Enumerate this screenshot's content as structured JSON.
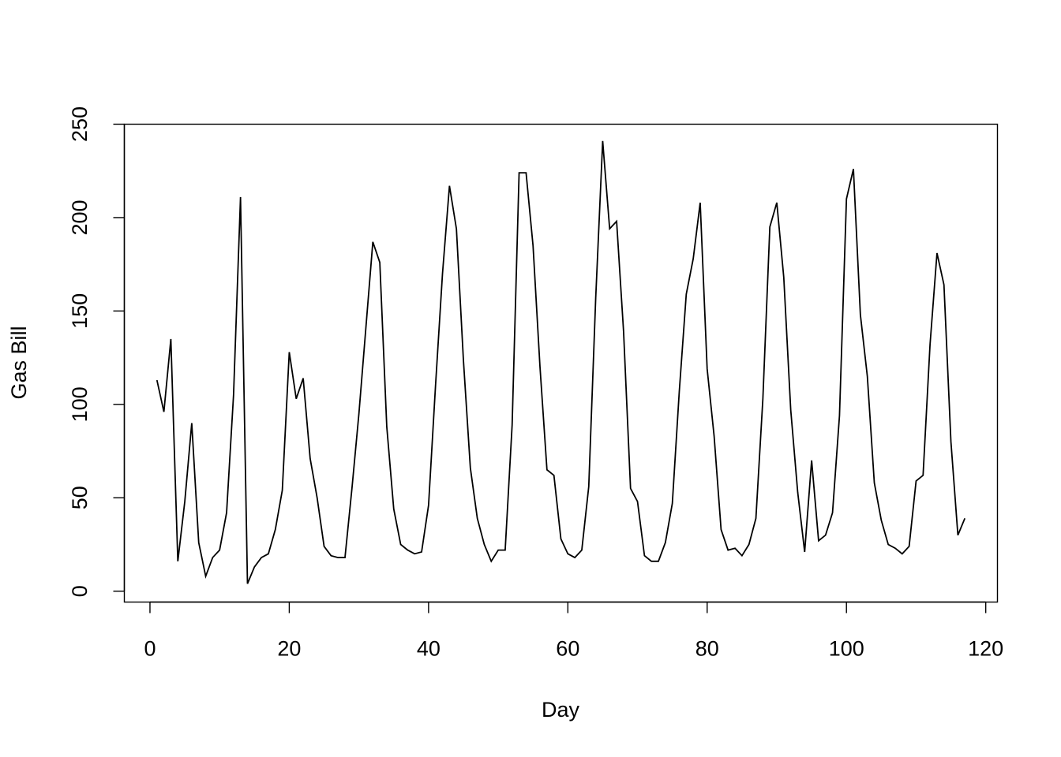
{
  "chart_data": {
    "type": "line",
    "title": "",
    "xlabel": "Day",
    "ylabel": "Gas Bill",
    "xlim": [
      -3.68,
      121.68
    ],
    "ylim": [
      -5.82,
      250
    ],
    "x_ticks": [
      0,
      20,
      40,
      60,
      80,
      100,
      120
    ],
    "y_ticks": [
      0,
      50,
      100,
      150,
      200,
      250
    ],
    "grid": false,
    "legend": "none",
    "series": [
      {
        "color": "#000000",
        "x": [
          1,
          2,
          3,
          4,
          5,
          6,
          7,
          8,
          9,
          10,
          11,
          12,
          13,
          14,
          15,
          16,
          17,
          18,
          19,
          20,
          21,
          22,
          23,
          24,
          25,
          26,
          27,
          28,
          29,
          30,
          31,
          32,
          33,
          34,
          35,
          36,
          37,
          38,
          39,
          40,
          41,
          42,
          43,
          44,
          45,
          46,
          47,
          48,
          49,
          50,
          51,
          52,
          53,
          54,
          55,
          56,
          57,
          58,
          59,
          60,
          61,
          62,
          63,
          64,
          65,
          66,
          67,
          68,
          69,
          70,
          71,
          72,
          73,
          74,
          75,
          76,
          77,
          78,
          79,
          80,
          81,
          82,
          83,
          84,
          85,
          86,
          87,
          88,
          89,
          90,
          91,
          92,
          93,
          94,
          95,
          96,
          97,
          98,
          99,
          100,
          101,
          102,
          103,
          104,
          105,
          106,
          107,
          108,
          109,
          110,
          111,
          112,
          113,
          114,
          115,
          116,
          117
        ],
        "values": [
          113,
          96,
          135,
          16,
          48,
          90,
          26,
          8,
          18,
          22,
          42,
          105,
          211,
          4,
          13,
          18,
          20,
          33,
          54,
          128,
          103,
          114,
          71,
          50,
          24,
          19,
          18,
          18,
          55,
          95,
          141,
          187,
          176,
          88,
          44,
          25,
          22,
          20,
          21,
          46,
          110,
          170,
          217,
          194,
          124,
          66,
          39,
          25,
          16,
          22,
          22,
          89,
          224,
          224,
          185,
          120,
          65,
          62,
          28,
          20,
          18,
          22,
          56,
          157,
          241,
          194,
          198,
          139,
          55,
          48,
          19,
          16,
          16,
          26,
          47,
          107,
          159,
          178,
          208,
          119,
          83,
          33,
          22,
          23,
          19,
          25,
          39,
          103,
          195,
          208,
          168,
          97,
          53,
          21,
          70,
          27,
          30,
          42,
          94,
          210,
          226,
          148,
          115,
          58,
          38,
          25,
          23,
          20,
          24,
          59,
          62,
          132,
          181,
          164,
          80,
          30,
          39
        ]
      }
    ]
  }
}
